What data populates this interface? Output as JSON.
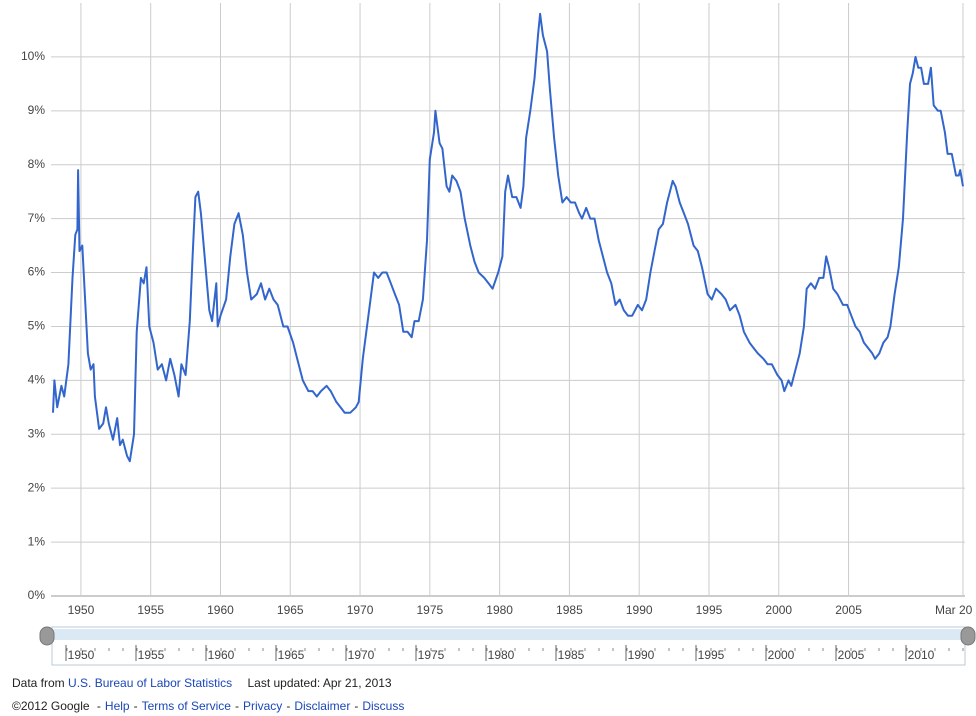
{
  "chart_data": {
    "type": "line",
    "x": [
      1948.0,
      1948.1,
      1948.3,
      1948.6,
      1948.8,
      1949.1,
      1949.4,
      1949.6,
      1949.75,
      1949.8,
      1949.9,
      1950.1,
      1950.3,
      1950.5,
      1950.7,
      1950.9,
      1951.0,
      1951.3,
      1951.6,
      1951.8,
      1952.0,
      1952.3,
      1952.6,
      1952.8,
      1953.0,
      1953.3,
      1953.5,
      1953.8,
      1954.0,
      1954.3,
      1954.5,
      1954.7,
      1954.9,
      1955.2,
      1955.5,
      1955.8,
      1956.1,
      1956.4,
      1956.7,
      1957.0,
      1957.2,
      1957.5,
      1957.8,
      1958.0,
      1958.2,
      1958.4,
      1958.6,
      1958.9,
      1959.2,
      1959.4,
      1959.7,
      1959.8,
      1960.0,
      1960.4,
      1960.7,
      1961.0,
      1961.3,
      1961.6,
      1961.9,
      1962.2,
      1962.6,
      1962.9,
      1963.2,
      1963.5,
      1963.8,
      1964.1,
      1964.5,
      1964.8,
      1965.2,
      1965.5,
      1965.9,
      1966.3,
      1966.6,
      1966.9,
      1967.2,
      1967.6,
      1967.9,
      1968.3,
      1968.6,
      1968.9,
      1969.3,
      1969.7,
      1969.9,
      1970.2,
      1970.5,
      1970.8,
      1971.0,
      1971.3,
      1971.6,
      1971.9,
      1972.2,
      1972.5,
      1972.8,
      1973.1,
      1973.4,
      1973.7,
      1973.9,
      1974.2,
      1974.5,
      1974.8,
      1975.0,
      1975.3,
      1975.4,
      1975.7,
      1975.9,
      1976.2,
      1976.4,
      1976.6,
      1976.9,
      1977.2,
      1977.5,
      1977.9,
      1978.2,
      1978.5,
      1978.9,
      1979.2,
      1979.5,
      1979.9,
      1980.2,
      1980.4,
      1980.6,
      1980.9,
      1981.2,
      1981.5,
      1981.7,
      1981.9,
      1982.2,
      1982.5,
      1982.75,
      1982.9,
      1983.1,
      1983.4,
      1983.6,
      1983.9,
      1984.2,
      1984.5,
      1984.8,
      1985.1,
      1985.4,
      1985.7,
      1985.9,
      1986.2,
      1986.5,
      1986.8,
      1987.1,
      1987.4,
      1987.7,
      1988.0,
      1988.3,
      1988.6,
      1988.9,
      1989.2,
      1989.5,
      1989.9,
      1990.2,
      1990.5,
      1990.8,
      1991.1,
      1991.4,
      1991.7,
      1992.0,
      1992.4,
      1992.6,
      1992.9,
      1993.2,
      1993.5,
      1993.9,
      1994.2,
      1994.5,
      1994.9,
      1995.2,
      1995.5,
      1995.9,
      1996.2,
      1996.5,
      1996.9,
      1997.2,
      1997.5,
      1997.9,
      1998.2,
      1998.5,
      1998.9,
      1999.2,
      1999.5,
      1999.9,
      2000.2,
      2000.4,
      2000.7,
      2000.9,
      2001.2,
      2001.5,
      2001.8,
      2002.0,
      2002.3,
      2002.6,
      2002.9,
      2003.2,
      2003.4,
      2003.6,
      2003.9,
      2004.2,
      2004.6,
      2004.9,
      2005.2,
      2005.5,
      2005.8,
      2006.1,
      2006.4,
      2006.7,
      2006.9,
      2007.2,
      2007.5,
      2007.8,
      2008.0,
      2008.3,
      2008.6,
      2008.9,
      2009.2,
      2009.4,
      2009.6,
      2009.8,
      2010.0,
      2010.2,
      2010.4,
      2010.7,
      2010.9,
      2011.1,
      2011.4,
      2011.6,
      2011.9,
      2012.1,
      2012.4,
      2012.7,
      2012.9,
      2013.0,
      2013.2
    ],
    "series": [
      {
        "color": "#3366cc",
        "values": [
          3.4,
          4.0,
          3.5,
          3.9,
          3.7,
          4.3,
          5.9,
          6.7,
          6.8,
          7.9,
          6.4,
          6.5,
          5.5,
          4.5,
          4.2,
          4.3,
          3.7,
          3.1,
          3.2,
          3.5,
          3.2,
          2.9,
          3.3,
          2.8,
          2.9,
          2.6,
          2.5,
          3.0,
          4.9,
          5.9,
          5.8,
          6.1,
          5.0,
          4.7,
          4.2,
          4.3,
          4.0,
          4.4,
          4.1,
          3.7,
          4.3,
          4.1,
          5.1,
          6.3,
          7.4,
          7.5,
          7.1,
          6.2,
          5.3,
          5.1,
          5.8,
          5.0,
          5.2,
          5.5,
          6.3,
          6.9,
          7.1,
          6.7,
          6.0,
          5.5,
          5.6,
          5.8,
          5.5,
          5.7,
          5.5,
          5.4,
          5.0,
          5.0,
          4.7,
          4.4,
          4.0,
          3.8,
          3.8,
          3.7,
          3.8,
          3.9,
          3.8,
          3.6,
          3.5,
          3.4,
          3.4,
          3.5,
          3.6,
          4.4,
          5.0,
          5.6,
          6.0,
          5.9,
          6.0,
          6.0,
          5.8,
          5.6,
          5.4,
          4.9,
          4.9,
          4.8,
          5.1,
          5.1,
          5.5,
          6.6,
          8.1,
          8.6,
          9.0,
          8.4,
          8.3,
          7.6,
          7.5,
          7.8,
          7.7,
          7.5,
          7.0,
          6.5,
          6.2,
          6.0,
          5.9,
          5.8,
          5.7,
          6.0,
          6.3,
          7.5,
          7.8,
          7.4,
          7.4,
          7.2,
          7.6,
          8.5,
          9.0,
          9.6,
          10.4,
          10.8,
          10.4,
          10.1,
          9.4,
          8.5,
          7.8,
          7.3,
          7.4,
          7.3,
          7.3,
          7.1,
          7.0,
          7.2,
          7.0,
          7.0,
          6.6,
          6.3,
          6.0,
          5.8,
          5.4,
          5.5,
          5.3,
          5.2,
          5.2,
          5.4,
          5.3,
          5.5,
          6.0,
          6.4,
          6.8,
          6.9,
          7.3,
          7.7,
          7.6,
          7.3,
          7.1,
          6.9,
          6.5,
          6.4,
          6.1,
          5.6,
          5.5,
          5.7,
          5.6,
          5.5,
          5.3,
          5.4,
          5.2,
          4.9,
          4.7,
          4.6,
          4.5,
          4.4,
          4.3,
          4.3,
          4.1,
          4.0,
          3.8,
          4.0,
          3.9,
          4.2,
          4.5,
          5.0,
          5.7,
          5.8,
          5.7,
          5.9,
          5.9,
          6.3,
          6.1,
          5.7,
          5.6,
          5.4,
          5.4,
          5.2,
          5.0,
          4.9,
          4.7,
          4.6,
          4.5,
          4.4,
          4.5,
          4.7,
          4.8,
          5.0,
          5.6,
          6.1,
          7.0,
          8.6,
          9.5,
          9.7,
          10.0,
          9.8,
          9.8,
          9.5,
          9.5,
          9.8,
          9.1,
          9.0,
          9.0,
          8.6,
          8.2,
          8.2,
          7.8,
          7.8,
          7.9,
          7.6
        ]
      }
    ],
    "xlim": [
      1948.0,
      2013.2
    ],
    "xticks": [
      1950,
      1955,
      1960,
      1965,
      1970,
      1975,
      1980,
      1985,
      1990,
      1995,
      2000,
      2005,
      {
        "value": 2013.2,
        "label": "Mar 20"
      }
    ],
    "ylim": [
      0,
      11
    ],
    "yticks": [
      {
        "value": 0,
        "label": "0%"
      },
      {
        "value": 1,
        "label": "1%"
      },
      {
        "value": 2,
        "label": "2%"
      },
      {
        "value": 3,
        "label": "3%"
      },
      {
        "value": 4,
        "label": "4%"
      },
      {
        "value": 5,
        "label": "5%"
      },
      {
        "value": 6,
        "label": "6%"
      },
      {
        "value": 7,
        "label": "7%"
      },
      {
        "value": 8,
        "label": "8%"
      },
      {
        "value": 9,
        "label": "9%"
      },
      {
        "value": 10,
        "label": "10%"
      }
    ],
    "grid": true
  },
  "navigator": {
    "labels": [
      "1950",
      "1955",
      "1960",
      "1965",
      "1970",
      "1975",
      "1980",
      "1985",
      "1990",
      "1995",
      "2000",
      "2005",
      "2010"
    ]
  },
  "footer": {
    "source_prefix": "Data from",
    "source": "U.S. Bureau of Labor Statistics",
    "updated": "Last updated: Apr 21, 2013",
    "copyright": "©2012 Google",
    "separator": "-",
    "links": [
      "Help",
      "Terms of Service",
      "Privacy",
      "Disclaimer",
      "Discuss"
    ]
  }
}
